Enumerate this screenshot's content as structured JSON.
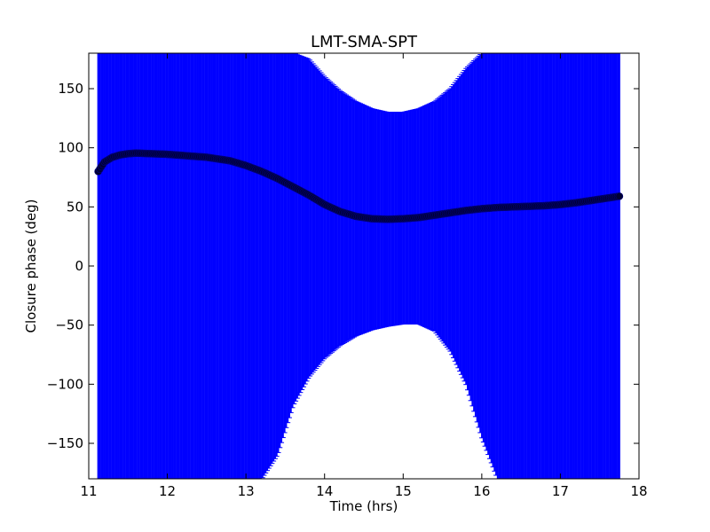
{
  "chart_data": {
    "type": "scatter",
    "title": "LMT-SMA-SPT",
    "xlabel": "Time (hrs)",
    "ylabel": "Closure phase (deg)",
    "xlim": [
      11,
      18
    ],
    "ylim": [
      -180,
      180
    ],
    "xticks": [
      11,
      12,
      13,
      14,
      15,
      16,
      17,
      18
    ],
    "xtick_labels": [
      "11",
      "12",
      "13",
      "14",
      "15",
      "16",
      "17",
      "18"
    ],
    "yticks": [
      -150,
      -100,
      -50,
      0,
      50,
      100,
      150
    ],
    "ytick_labels": [
      "−150",
      "−100",
      "−50",
      "0",
      "50",
      "100",
      "150"
    ],
    "grid": false,
    "colors": {
      "errorbars": "#0000ff",
      "markers": "#000033",
      "marker_edge": "#000080"
    },
    "series": [
      {
        "values_kind": "closure_phase",
        "x": [
          11.12,
          11.2,
          11.3,
          11.4,
          11.5,
          11.6,
          11.8,
          12.0,
          12.2,
          12.5,
          12.8,
          13.0,
          13.2,
          13.4,
          13.6,
          13.8,
          14.0,
          14.2,
          14.4,
          14.6,
          14.8,
          15.0,
          15.2,
          15.4,
          15.6,
          15.8,
          16.0,
          16.2,
          16.4,
          16.6,
          16.8,
          17.0,
          17.2,
          17.4,
          17.6,
          17.75
        ],
        "y": [
          80,
          88,
          92,
          94,
          95,
          95.5,
          95,
          94.5,
          93.5,
          92,
          89,
          85,
          80,
          74,
          67,
          60,
          52,
          46,
          42,
          40,
          39.5,
          40,
          41,
          43,
          45,
          47,
          48.5,
          49.5,
          50,
          50.5,
          51,
          52,
          53.5,
          55.5,
          57.5,
          59
        ],
        "err_upper_bound": [
          180,
          180,
          180,
          180,
          180,
          180,
          180,
          180,
          180,
          180,
          180,
          180,
          180,
          180,
          180,
          175,
          160,
          148,
          139,
          133,
          130,
          130,
          133,
          139,
          150,
          167,
          180,
          180,
          180,
          180,
          180,
          180,
          180,
          180,
          180,
          180
        ],
        "err_lower_bound": [
          -180,
          -180,
          -180,
          -180,
          -180,
          -180,
          -180,
          -180,
          -180,
          -180,
          -180,
          -180,
          -180,
          -160,
          -118,
          -94,
          -78,
          -67,
          -59,
          -54,
          -51,
          -49,
          -49,
          -55,
          -72,
          -100,
          -145,
          -180,
          -180,
          -180,
          -180,
          -180,
          -180,
          -180,
          -180,
          -180
        ]
      }
    ]
  }
}
